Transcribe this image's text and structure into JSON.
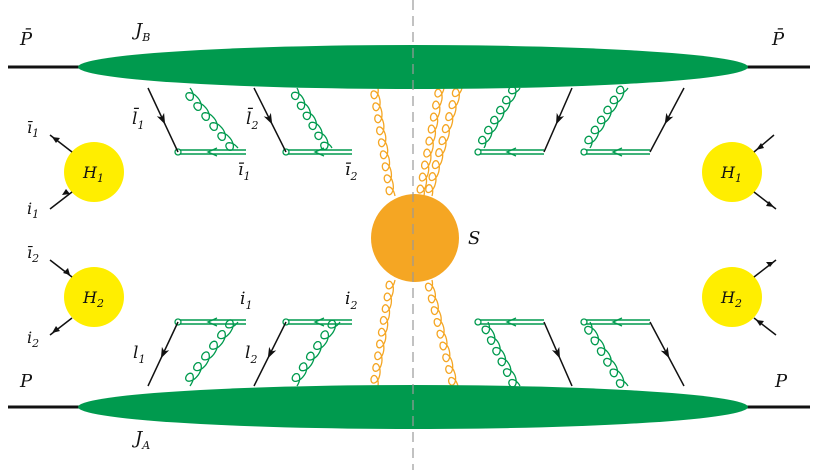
{
  "labels": {
    "p_top_left": "P̄",
    "p_top_right": "P̄",
    "p_bottom_left": "P",
    "p_bottom_right": "P",
    "jet_b": "J",
    "jet_b_sub": "B",
    "jet_a": "J",
    "jet_a_sub": "A",
    "l1bar": "l̄",
    "l1bar_sub": "1",
    "l2bar": "l̄",
    "l2bar_sub": "2",
    "i1bar_mid": "ī",
    "i1bar_mid_sub": "1",
    "i2bar_mid": "ī",
    "i2bar_mid_sub": "2",
    "i1_mid": "i",
    "i1_mid_sub": "1",
    "i2_mid": "i",
    "i2_mid_sub": "2",
    "l1": "l",
    "l1_sub": "1",
    "l2": "l",
    "l2_sub": "2",
    "soft": "S",
    "h1_left": "H",
    "h1_left_sub": "1",
    "h2_left": "H",
    "h2_left_sub": "2",
    "h1_right": "H",
    "h1_right_sub": "1",
    "h2_right": "H",
    "h2_right_sub": "2",
    "i1bar_left": "ī",
    "i1bar_left_sub": "1",
    "i1_left": "i",
    "i1_left_sub": "1",
    "i2bar_left": "ī",
    "i2bar_left_sub": "2",
    "i2_left": "i",
    "i2_left_sub": "2"
  },
  "colors": {
    "jet": "#009a4e",
    "gluon_collinear": "#009a4e",
    "gluon_soft": "#f5a623",
    "soft_blob": "#f5a623",
    "hard_blob": "#ffee00",
    "wilson_line": "#009a4e",
    "fermion": "#111111",
    "cut": "#999999"
  }
}
